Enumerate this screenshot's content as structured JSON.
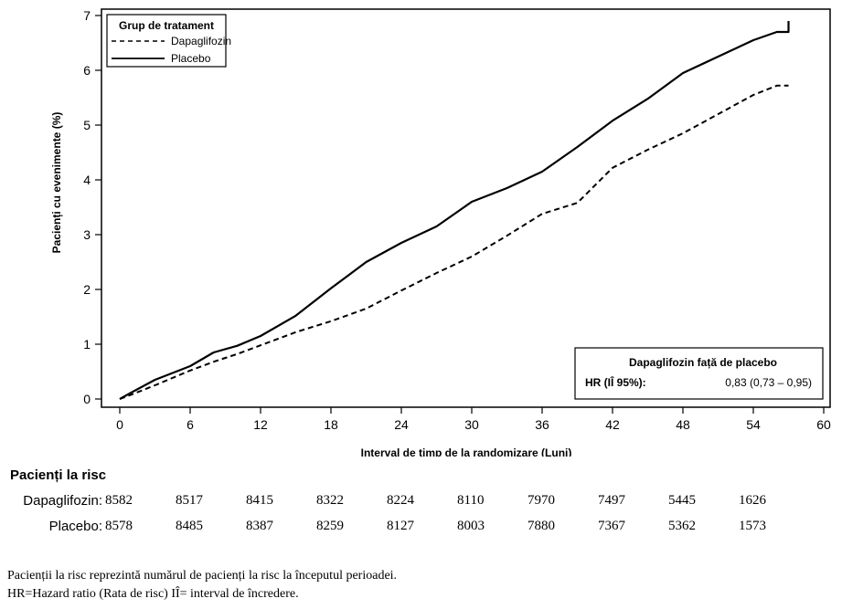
{
  "chart_data": {
    "type": "line",
    "xlabel": "Interval de timp de la randomizare (Luni)",
    "ylabel": "Pacienți cu evenimente (%)",
    "xlim": [
      0,
      60
    ],
    "ylim": [
      0,
      7
    ],
    "x_ticks": [
      "0",
      "6",
      "12",
      "18",
      "24",
      "30",
      "36",
      "42",
      "48",
      "54",
      "60"
    ],
    "y_ticks": [
      "0",
      "1",
      "2",
      "3",
      "4",
      "5",
      "6",
      "7"
    ],
    "grid": false,
    "legend": {
      "title": "Grup de tratament",
      "position": "top-left",
      "items": [
        {
          "label": "Dapaglifozin",
          "style": "dashed"
        },
        {
          "label": "Placebo",
          "style": "solid"
        }
      ]
    },
    "series": [
      {
        "name": "Dapaglifozin",
        "style": "dashed",
        "x": [
          0,
          1,
          3,
          6,
          8,
          10,
          12,
          15,
          18,
          21,
          24,
          27,
          30,
          33,
          36,
          39,
          42,
          45,
          48,
          51,
          54,
          56,
          57
        ],
        "values": [
          0,
          0.08,
          0.25,
          0.52,
          0.68,
          0.82,
          0.98,
          1.22,
          1.42,
          1.65,
          1.98,
          2.3,
          2.6,
          2.98,
          3.38,
          3.58,
          4.22,
          4.55,
          4.85,
          5.2,
          5.55,
          5.72,
          5.72
        ]
      },
      {
        "name": "Placebo",
        "style": "solid",
        "x": [
          0,
          1,
          3,
          6,
          8,
          10,
          12,
          15,
          18,
          21,
          24,
          27,
          30,
          33,
          36,
          39,
          42,
          45,
          48,
          51,
          54,
          56,
          57,
          57
        ],
        "values": [
          0,
          0.12,
          0.35,
          0.6,
          0.85,
          0.97,
          1.15,
          1.52,
          2.02,
          2.5,
          2.85,
          3.15,
          3.6,
          3.85,
          4.15,
          4.6,
          5.08,
          5.48,
          5.95,
          6.25,
          6.55,
          6.7,
          6.7,
          6.9
        ]
      }
    ],
    "annotation": {
      "title": "Dapaglifozin față de placebo",
      "label": "HR (IÎ 95%):",
      "value": "0,83 (0,73 – 0,95)"
    }
  },
  "risk_table": {
    "title": "Pacienți la risc",
    "rows": [
      {
        "label": "Dapaglifozin:",
        "values": [
          "8582",
          "8517",
          "8415",
          "8322",
          "8224",
          "8110",
          "7970",
          "7497",
          "5445",
          "1626"
        ]
      },
      {
        "label": "Placebo:",
        "values": [
          "8578",
          "8485",
          "8387",
          "8259",
          "8127",
          "8003",
          "7880",
          "7367",
          "5362",
          "1573"
        ]
      }
    ]
  },
  "footnotes": [
    "Pacienții la risc reprezintă numărul de pacienți la risc la începutul perioadei.",
    "HR=Hazard ratio (Rata de risc) IÎ= interval de încredere."
  ]
}
